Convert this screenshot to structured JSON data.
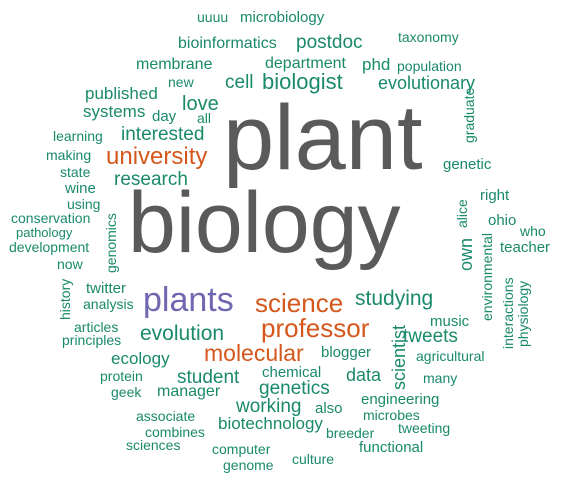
{
  "palette": {
    "green": "#1a8a6a",
    "gray": "#5a5a5a",
    "orange": "#d4581c",
    "purple": "#6f67b0"
  },
  "words": {
    "uuuu": "uuuu",
    "microbiology": "microbiology",
    "taxonomy": "taxonomy",
    "bioinformatics": "bioinformatics",
    "postdoc": "postdoc",
    "membrane": "membrane",
    "department": "department",
    "phd": "phd",
    "population": "population",
    "new": "new",
    "cell": "cell",
    "biologist": "biologist",
    "evolutionary": "evolutionary",
    "published": "published",
    "love": "love",
    "systems": "systems",
    "day": "day",
    "all": "all",
    "learning": "learning",
    "interested": "interested",
    "graduate": "graduate",
    "making": "making",
    "university": "university",
    "state": "state",
    "genetic": "genetic",
    "research": "research",
    "wine": "wine",
    "using": "using",
    "right": "right",
    "plant": "plant",
    "biology": "biology",
    "alice": "alice",
    "conservation": "conservation",
    "ohio": "ohio",
    "who": "who",
    "pathology": "pathology",
    "genomics": "genomics",
    "development": "development",
    "teacher": "teacher",
    "now": "now",
    "own": "own",
    "environmental": "environmental",
    "twitter": "twitter",
    "history": "history",
    "analysis": "analysis",
    "plants": "plants",
    "science": "science",
    "studying": "studying",
    "interactions": "interactions",
    "physiology": "physiology",
    "articles": "articles",
    "professor": "professor",
    "evolution": "evolution",
    "music": "music",
    "principles": "principles",
    "tweets": "tweets",
    "scientist": "scientist",
    "molecular": "molecular",
    "blogger": "blogger",
    "agricultural": "agricultural",
    "ecology": "ecology",
    "protein": "protein",
    "chemical": "chemical",
    "data": "data",
    "student": "student",
    "many": "many",
    "geek": "geek",
    "manager": "manager",
    "genetics": "genetics",
    "engineering": "engineering",
    "associate": "associate",
    "working": "working",
    "also": "also",
    "microbes": "microbes",
    "biotechnology": "biotechnology",
    "combines": "combines",
    "tweeting": "tweeting",
    "sciences": "sciences",
    "breeder": "breeder",
    "computer": "computer",
    "functional": "functional",
    "culture": "culture",
    "genome": "genome"
  }
}
